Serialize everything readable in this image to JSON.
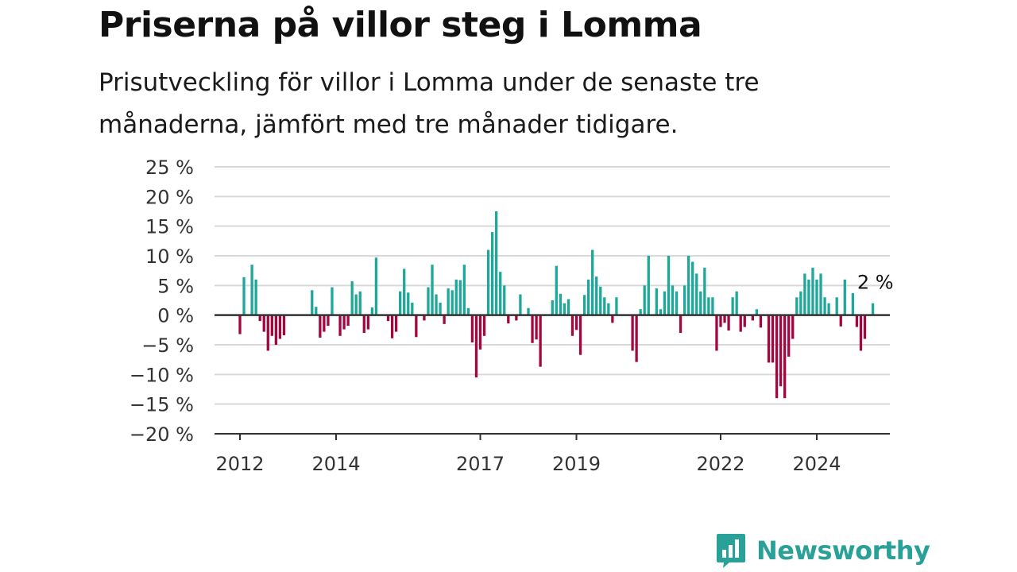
{
  "title": "Priserna på villor steg i Lomma",
  "subtitle": "Prisutveckling för villor i Lomma under de senaste tre månaderna, jämfört med tre månader tidigare.",
  "brand": {
    "name": "Newsworthy",
    "color": "#2aa198",
    "icon": "bar-chart-speech-bubble-icon"
  },
  "colors": {
    "positive": "#1fa89a",
    "negative": "#a3073f",
    "grid": "#d9d9d9",
    "zero": "#333333"
  },
  "chart_data": {
    "type": "bar",
    "x_start": "2012-01",
    "frequency": "monthly",
    "ylim": [
      -20,
      25
    ],
    "yticks": [
      25,
      20,
      15,
      10,
      5,
      0,
      -5,
      -10,
      -15,
      -20
    ],
    "ytick_labels": [
      "25 %",
      "20 %",
      "15 %",
      "10 %",
      "5 %",
      "0 %",
      "−5 %",
      "−10 %",
      "−15 %",
      "−20 %"
    ],
    "xticks": [
      "2012",
      "2014",
      "2017",
      "2019",
      "2022",
      "2024"
    ],
    "last_value_label": "2 %",
    "values": [
      -3.2,
      6.4,
      0,
      8.5,
      6.0,
      -1.0,
      -2.8,
      -6.0,
      -3.5,
      -5.0,
      -4.0,
      -3.4,
      0,
      0,
      0,
      0,
      0,
      0,
      4.2,
      1.4,
      -3.8,
      -2.8,
      -1.8,
      4.7,
      0,
      -3.5,
      -2.4,
      -1.8,
      5.7,
      3.5,
      4.0,
      -3.0,
      -2.4,
      1.3,
      9.7,
      0,
      0,
      -1.0,
      -3.9,
      -2.8,
      4.0,
      7.8,
      3.8,
      2.1,
      -3.7,
      0,
      -0.9,
      4.7,
      8.5,
      3.5,
      2.1,
      -1.5,
      4.5,
      4.2,
      6.0,
      5.9,
      8.5,
      1.2,
      -4.6,
      -10.5,
      -5.8,
      -3.5,
      11.0,
      14.0,
      17.5,
      7.3,
      5.0,
      -1.4,
      0,
      -0.9,
      3.5,
      0,
      1.2,
      -4.7,
      -4.1,
      -8.7,
      0,
      0,
      2.5,
      8.3,
      3.6,
      2.0,
      2.7,
      -3.5,
      -2.5,
      -6.7,
      3.4,
      6.0,
      11.0,
      6.5,
      4.8,
      3.0,
      2.0,
      -1.3,
      3.0,
      0,
      0,
      0,
      -6.0,
      -7.9,
      1.0,
      5.0,
      10.0,
      0,
      4.5,
      1.0,
      4.0,
      10.0,
      5.0,
      4.0,
      -3.0,
      5.0,
      10.0,
      9.0,
      7.0,
      4.0,
      8.0,
      3.0,
      3.0,
      -6.0,
      -2.0,
      -1.3,
      -2.6,
      3.0,
      4.0,
      -2.8,
      -2.0,
      0,
      -0.9,
      1.0,
      -2.1,
      0,
      -8.0,
      -8.0,
      -14.0,
      -12.0,
      -14.0,
      -7.0,
      -4.0,
      3.0,
      4.0,
      7.0,
      6.0,
      8.0,
      6.0,
      7.0,
      3.0,
      2.0,
      0,
      3.0,
      -1.9,
      6.0,
      0,
      3.7,
      -2.0,
      -6.0,
      -4.0,
      0,
      2.0
    ]
  }
}
